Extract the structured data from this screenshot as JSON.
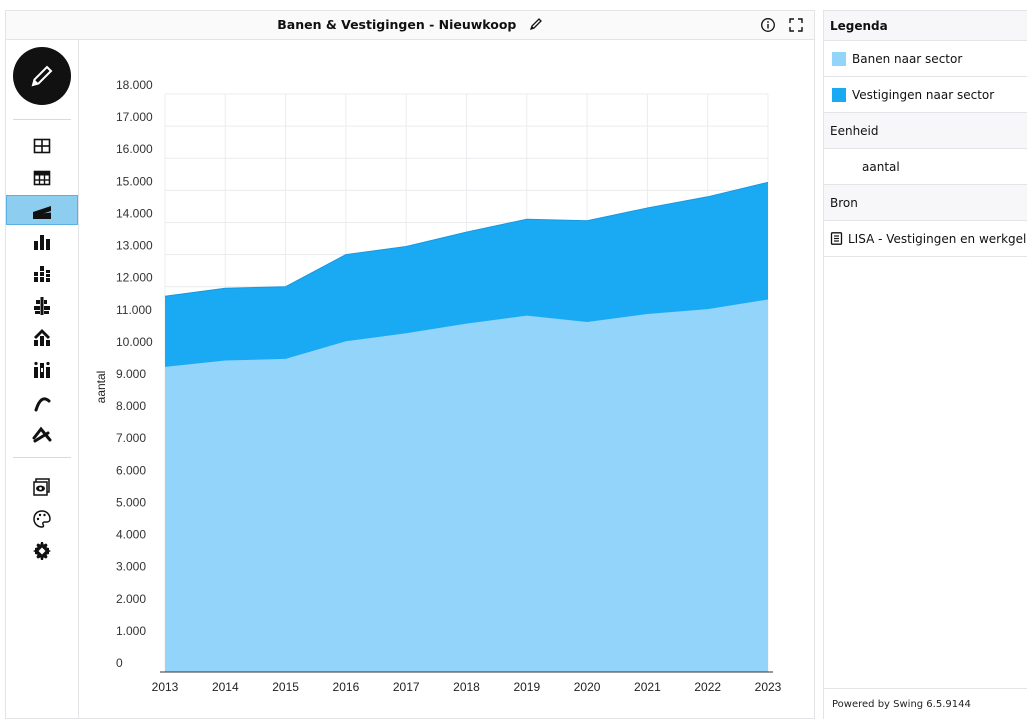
{
  "title_bar": {
    "title": "Banen & Vestigingen - Nieuwkoop"
  },
  "icons": {
    "edit": "pencil-icon",
    "info": "info-icon",
    "fullscreen": "expand-icon"
  },
  "toolbar": {
    "tools": [
      {
        "name": "table-icon"
      },
      {
        "name": "pivot-table-icon"
      },
      {
        "name": "area-chart-icon",
        "active": true
      },
      {
        "name": "bar-chart-icon"
      },
      {
        "name": "stacked-bar-chart-icon"
      },
      {
        "name": "horizontal-bar-chart-icon"
      },
      {
        "name": "pyramid-chart-icon"
      },
      {
        "name": "boxplot-chart-icon"
      },
      {
        "name": "line-chart-icon"
      },
      {
        "name": "cross-line-chart-icon"
      },
      {
        "name": "preview-icon"
      },
      {
        "name": "palette-icon"
      },
      {
        "name": "settings-icon"
      }
    ]
  },
  "chart_data": {
    "type": "area",
    "stacked": true,
    "ylabel": "aantal",
    "ylim": [
      0,
      18000
    ],
    "y_ticks": [
      "0",
      "1.000",
      "2.000",
      "3.000",
      "4.000",
      "5.000",
      "6.000",
      "7.000",
      "8.000",
      "9.000",
      "10.000",
      "11.000",
      "12.000",
      "13.000",
      "14.000",
      "15.000",
      "16.000",
      "17.000",
      "18.000"
    ],
    "x": [
      "2013",
      "2014",
      "2015",
      "2016",
      "2017",
      "2018",
      "2019",
      "2020",
      "2021",
      "2022",
      "2023"
    ],
    "grid": true,
    "series": [
      {
        "name": "Banen naar sector",
        "color": "#93d5fa",
        "values": [
          9500,
          9700,
          9750,
          10300,
          10550,
          10850,
          11100,
          10900,
          11150,
          11300,
          11600
        ]
      },
      {
        "name": "Vestigingen naar sector",
        "color": "#1aaaf4",
        "values": [
          2200,
          2250,
          2250,
          2700,
          2700,
          2850,
          3000,
          3150,
          3300,
          3500,
          3650
        ]
      }
    ]
  },
  "legend": {
    "header": "Legenda",
    "items": [
      {
        "label": "Banen naar sector",
        "color": "#93d5fa"
      },
      {
        "label": "Vestigingen naar sector",
        "color": "#1aaaf4"
      }
    ],
    "unit_header": "Eenheid",
    "unit_value": "aantal",
    "source_header": "Bron",
    "source_value": "LISA - Vestigingen en werkgelegenheid"
  },
  "footer": {
    "powered_by": "Powered by Swing 6.5.9144"
  }
}
